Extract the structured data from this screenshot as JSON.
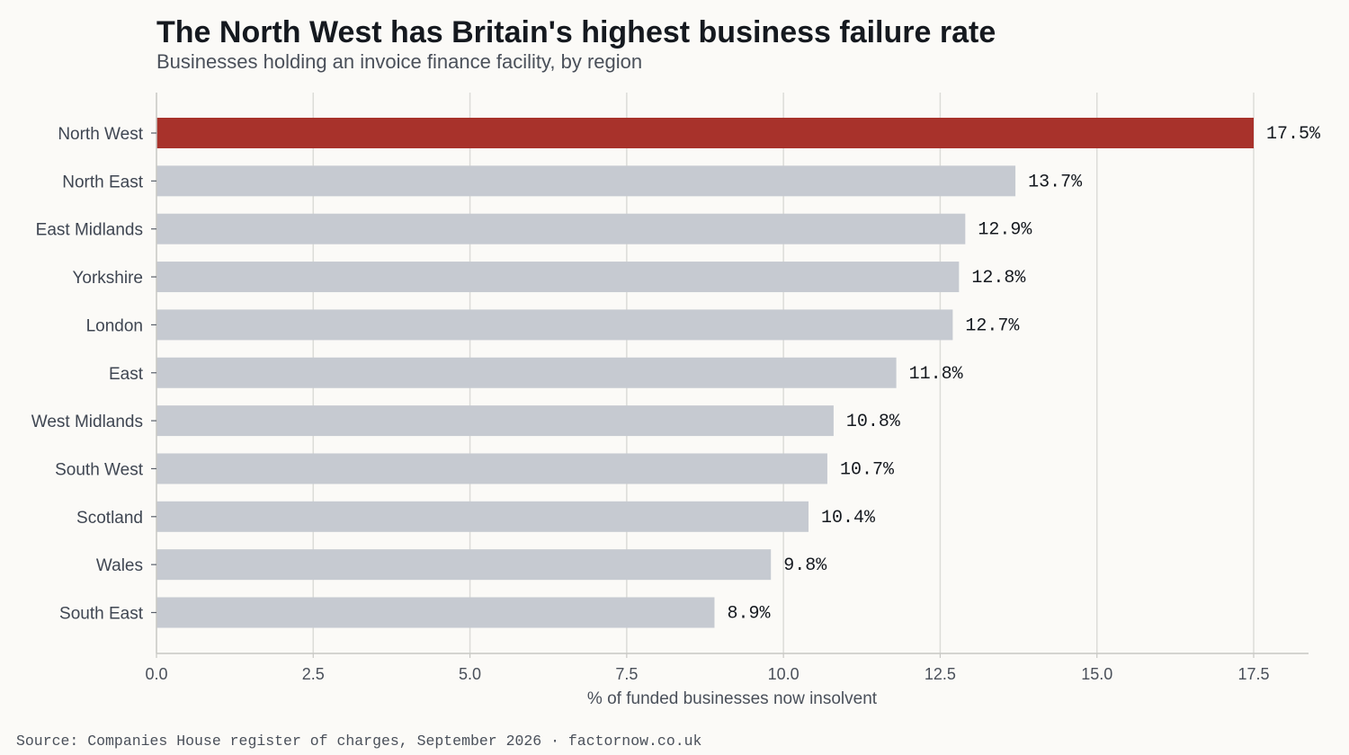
{
  "title": "The North West has Britain's highest business failure rate",
  "subtitle": "Businesses holding an invoice finance facility, by region",
  "source": "Source: Companies House register of charges, September 2026 · factornow.co.uk",
  "colors": {
    "highlight": "#a8322b",
    "bar": "#c6cad1",
    "grid": "#dcdcd8",
    "axis": "#c8c8c4"
  },
  "chart_data": {
    "type": "bar",
    "orientation": "horizontal",
    "categories": [
      "North West",
      "North East",
      "East Midlands",
      "Yorkshire",
      "London",
      "East",
      "West Midlands",
      "South West",
      "Scotland",
      "Wales",
      "South East"
    ],
    "values": [
      17.5,
      13.7,
      12.9,
      12.8,
      12.7,
      11.8,
      10.8,
      10.7,
      10.4,
      9.8,
      8.9
    ],
    "value_labels": [
      "17.5%",
      "13.7%",
      "12.9%",
      "12.8%",
      "12.7%",
      "11.8%",
      "10.8%",
      "10.7%",
      "10.4%",
      "9.8%",
      "8.9%"
    ],
    "highlight_category": "North West",
    "xlabel": "% of funded businesses now insolvent",
    "ylabel": "",
    "xlim": [
      0,
      18.4
    ],
    "xticks": [
      0,
      2.5,
      5,
      7.5,
      10,
      12.5,
      15,
      17.5
    ],
    "xtick_labels": [
      "0.0",
      "2.5",
      "5.0",
      "7.5",
      "10.0",
      "12.5",
      "15.0",
      "17.5"
    ],
    "grid": true
  }
}
